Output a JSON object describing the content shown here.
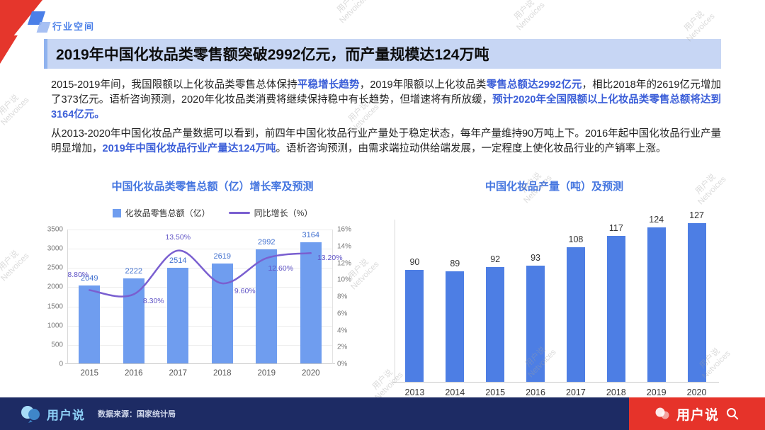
{
  "header": {
    "section_label": "行业空间",
    "title": "2019年中国化妆品类零售额突破2992亿元，而产量规模达124万吨"
  },
  "paragraph1": {
    "seg1": "2015-2019年间，我国限额以上化妆品类零售总体保持",
    "hl1": "平稳增长趋势",
    "seg2": "，2019年限额以上化妆品类",
    "hl2": "零售总额达2992亿元",
    "seg3": "，相比2018年的2619亿元增加了373亿元。语析咨询预测，2020年化妆品类消费将继续保持稳中有长趋势，但增速将有所放缓，",
    "hl3": "预计2020年全国限额以上化妆品类零售总额将达到3164亿元。"
  },
  "paragraph2": {
    "seg1": "从2013-2020年中国化妆品产量数据可以看到，前四年中国化妆品行业产量处于稳定状态，每年产量维持90万吨上下。2016年起中国化妆品行业产量明显增加，",
    "hl1": "2019年中国化妆品行业产量达124万吨",
    "seg2": "。语析咨询预测，由需求端拉动供给端发展，一定程度上使化妆品行业的产销率上涨。"
  },
  "chart_data": [
    {
      "type": "combo-bar-line",
      "title": "中国化妆品类零售总额（亿）增长率及预测",
      "categories": [
        "2015",
        "2016",
        "2017",
        "2018",
        "2019",
        "2020"
      ],
      "series": [
        {
          "name": "化妆品零售总额（亿）",
          "type": "bar",
          "color": "#6f9def",
          "values": [
            2049,
            2222,
            2514,
            2619,
            2992,
            3164
          ]
        },
        {
          "name": "同比增长（%）",
          "type": "line",
          "color": "#7a5fd0",
          "values": [
            8.8,
            8.3,
            13.5,
            9.6,
            12.6,
            13.2
          ],
          "label_suffix": "%"
        }
      ],
      "left_axis": {
        "min": 0,
        "max": 3500,
        "step": 500
      },
      "right_axis": {
        "min": 0,
        "max": 16,
        "step": 2,
        "suffix": "%"
      },
      "grid": true,
      "legend_position": "top"
    },
    {
      "type": "bar",
      "title": "中国化妆品产量（吨）及预测",
      "categories": [
        "2013",
        "2014",
        "2015",
        "2016",
        "2017",
        "2018",
        "2019",
        "2020"
      ],
      "values": [
        90,
        89,
        92,
        93,
        108,
        117,
        124,
        127
      ],
      "color": "#4d7ee4",
      "ylim": [
        0,
        130
      ],
      "grid": false
    }
  ],
  "footer": {
    "logo_text": "用户说",
    "source": "数据来源：国家统计局",
    "promo_text": "用户说"
  },
  "watermark": {
    "line1": "用户说",
    "line2": "Netvoices"
  }
}
